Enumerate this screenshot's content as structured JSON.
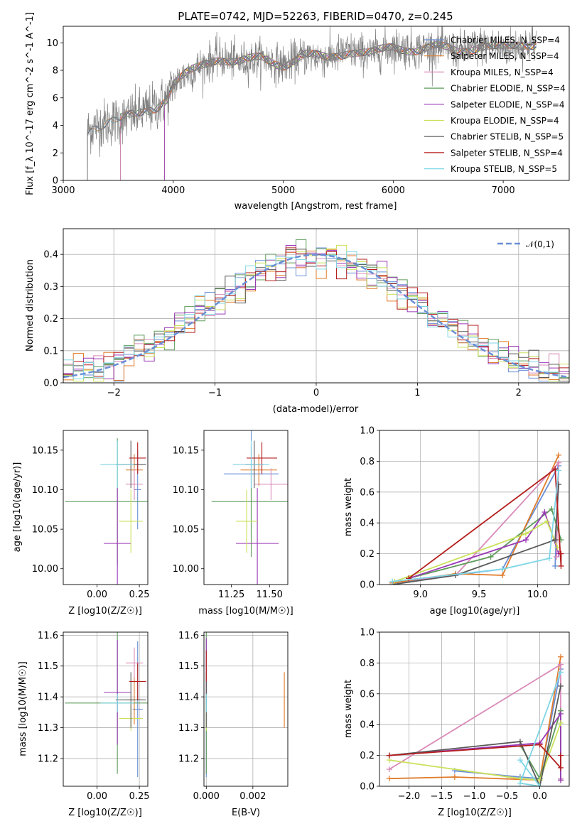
{
  "palette": [
    "#6a8fd6",
    "#e07b2a",
    "#d989b8",
    "#5e9b5a",
    "#9a3ab7",
    "#c9e05a",
    "#595959",
    "#b51d1d",
    "#7fd6e6"
  ],
  "chart_data": [
    {
      "id": "spectrum",
      "type": "line",
      "title": "PLATE=0742, MJD=52263, FIBERID=0470, z=0.245",
      "xlabel": "wavelength [Angstrom, rest frame]",
      "ylabel": "Flux [f_λ 10^-17 erg cm^-2 s^-1 A^-1]",
      "xlim": [
        3000,
        7600
      ],
      "ylim": [
        0,
        11.2
      ],
      "xticks": [
        "3000",
        "4000",
        "5000",
        "6000",
        "7000"
      ],
      "yticks": [
        "0",
        "2",
        "4",
        "6",
        "8",
        "10"
      ],
      "legend_position": "right",
      "legend": [
        "Chabrier MILES, N_SSP=4",
        "Salpeter MILES, N_SSP=4",
        "Kroupa MILES, N_SSP=4",
        "Chabrier ELODIE, N_SSP=4",
        "Salpeter ELODIE, N_SSP=4",
        "Kroupa ELODIE, N_SSP=4",
        "Chabrier STELIB, N_SSP=5",
        "Salpeter STELIB, N_SSP=4",
        "Kroupa STELIB, N_SSP=5"
      ],
      "continuum": {
        "x": [
          3220,
          3300,
          3400,
          3550,
          3700,
          3850,
          3950,
          4000,
          4100,
          4250,
          4400,
          4600,
          4800,
          5000,
          5200,
          5400,
          5600,
          5800,
          6000,
          6200,
          6400,
          6600,
          6800,
          7000,
          7300
        ],
        "y": [
          3.6,
          4.0,
          4.2,
          4.5,
          4.9,
          5.4,
          6.0,
          7.0,
          7.6,
          8.3,
          8.9,
          8.6,
          8.9,
          8.4,
          9.1,
          8.9,
          9.4,
          9.2,
          9.7,
          9.5,
          9.7,
          9.4,
          9.8,
          9.6,
          10.0
        ]
      },
      "model_start": [
        3220,
        3220,
        3520,
        3520,
        3920,
        3920,
        3220,
        3520,
        3220
      ]
    },
    {
      "id": "residuals",
      "type": "histogram",
      "xlabel": "(data-model)/error",
      "ylabel": "Normed distribution",
      "xlim": [
        -2.5,
        2.5
      ],
      "ylim": [
        0,
        0.48
      ],
      "xticks": [
        "−2",
        "−1",
        "0",
        "1",
        "2"
      ],
      "yticks": [
        "0.0",
        "0.1",
        "0.2",
        "0.3",
        "0.4"
      ],
      "grid": true,
      "legend": [
        "𝒩(0,1)"
      ],
      "legend_position": "top-right",
      "bin_width": 0.1
    },
    {
      "id": "age-vs-Z",
      "type": "errorbar",
      "xlabel": "Z [log10(Z/Z☉)]",
      "ylabel": "age [log10(age/yr)]",
      "xlim": [
        -0.2,
        0.3
      ],
      "ylim": [
        9.98,
        10.175
      ],
      "xticks": [
        "0.00",
        "0.25"
      ],
      "yticks": [
        "10.00",
        "10.05",
        "10.10",
        "10.15"
      ],
      "points": [
        {
          "x": 0.24,
          "xe": 0.02,
          "y": 10.1,
          "ye": 0.05
        },
        {
          "x": 0.22,
          "xe": 0.05,
          "y": 10.125,
          "ye": 0.02
        },
        {
          "x": 0.22,
          "xe": 0.05,
          "y": 10.107,
          "ye": 0.02
        },
        {
          "x": 0.12,
          "xe": 0.31,
          "y": 10.085,
          "ye": 0.08
        },
        {
          "x": 0.12,
          "xe": 0.08,
          "y": 10.032,
          "ye": 0.07
        },
        {
          "x": 0.2,
          "xe": 0.07,
          "y": 10.06,
          "ye": 0.04
        },
        {
          "x": 0.2,
          "xe": 0.09,
          "y": 10.132,
          "ye": 0.03
        },
        {
          "x": 0.24,
          "xe": 0.05,
          "y": 10.14,
          "ye": 0.02
        },
        {
          "x": 0.12,
          "xe": 0.1,
          "y": 10.132,
          "ye": 0.03
        }
      ]
    },
    {
      "id": "age-vs-mass",
      "type": "errorbar",
      "xlabel": "mass [log10(M/M☉)]",
      "ylabel": "",
      "xlim": [
        11.07,
        11.62
      ],
      "ylim": [
        9.98,
        10.175
      ],
      "xticks": [
        "11.25",
        "11.50"
      ],
      "yticks": [
        "10.00",
        "10.05",
        "10.10",
        "10.15"
      ],
      "points": [
        {
          "x": 11.38,
          "xe": 0.18,
          "y": 10.12,
          "ye": 0.08
        },
        {
          "x": 11.43,
          "xe": 0.12,
          "y": 10.125,
          "ye": 0.02
        },
        {
          "x": 11.51,
          "xe": 0.11,
          "y": 10.107,
          "ye": 0.02
        },
        {
          "x": 11.38,
          "xe": 0.26,
          "y": 10.085,
          "ye": 0.07
        },
        {
          "x": 11.42,
          "xe": 0.14,
          "y": 10.032,
          "ye": 0.07
        },
        {
          "x": 11.35,
          "xe": 0.07,
          "y": 10.06,
          "ye": 0.04
        },
        {
          "x": 11.4,
          "xe": 0.06,
          "y": 10.132,
          "ye": 0.03
        },
        {
          "x": 11.45,
          "xe": 0.1,
          "y": 10.14,
          "ye": 0.02
        },
        {
          "x": 11.38,
          "xe": 0.12,
          "y": 10.132,
          "ye": 0.03
        }
      ]
    },
    {
      "id": "mass-weight-vs-age",
      "type": "line",
      "xlabel": "age [log10(age/yr)]",
      "ylabel": "mass weight",
      "xlim": [
        8.65,
        10.27
      ],
      "ylim": [
        0,
        1.0
      ],
      "xticks": [
        "9.0",
        "9.5",
        "10.0"
      ],
      "yticks": [
        "0.0",
        "0.2",
        "0.4",
        "0.6",
        "0.8",
        "1.0"
      ],
      "grid": true,
      "series": [
        {
          "x": [
            8.76,
            9.7,
            10.18,
            10.15
          ],
          "y": [
            0.01,
            0.1,
            0.77,
            0.12
          ]
        },
        {
          "x": [
            8.76,
            9.3,
            9.7,
            10.18
          ],
          "y": [
            0.01,
            0.07,
            0.06,
            0.84
          ]
        },
        {
          "x": [
            8.9,
            9.3,
            10.18,
            10.16
          ],
          "y": [
            0.03,
            0.06,
            0.79,
            0.18
          ]
        },
        {
          "x": [
            8.9,
            9.6,
            10.12,
            10.2
          ],
          "y": [
            0.04,
            0.18,
            0.49,
            0.29
          ]
        },
        {
          "x": [
            8.9,
            9.9,
            10.06,
            10.18
          ],
          "y": [
            0.04,
            0.29,
            0.47,
            0.2
          ]
        },
        {
          "x": [
            8.78,
            9.9,
            10.08,
            10.17
          ],
          "y": [
            0.02,
            0.33,
            0.41,
            0.24
          ]
        },
        {
          "x": [
            8.76,
            9.3,
            10.15,
            10.18
          ],
          "y": [
            0.0,
            0.06,
            0.29,
            0.65
          ]
        },
        {
          "x": [
            8.9,
            10.15,
            10.2,
            10.2
          ],
          "y": [
            0.04,
            0.75,
            0.12,
            0.2
          ]
        },
        {
          "x": [
            8.76,
            9.7,
            10.1,
            10.18
          ],
          "y": [
            0.02,
            0.1,
            0.17,
            0.74
          ]
        }
      ]
    },
    {
      "id": "mass-vs-Z",
      "type": "errorbar",
      "xlabel": "Z [log10(Z/Z☉)]",
      "ylabel": "mass [log10(M/M☉)]",
      "xlim": [
        -0.2,
        0.3
      ],
      "ylim": [
        11.11,
        11.61
      ],
      "xticks": [
        "0.00",
        "0.25"
      ],
      "yticks": [
        "11.2",
        "11.3",
        "11.4",
        "11.5",
        "11.6"
      ],
      "points": [
        {
          "x": 0.24,
          "xe": 0.03,
          "y": 11.36,
          "ye": 0.22
        },
        {
          "x": 0.22,
          "xe": 0.05,
          "y": 11.39,
          "ye": 0.08
        },
        {
          "x": 0.22,
          "xe": 0.05,
          "y": 11.51,
          "ye": 0.05
        },
        {
          "x": 0.12,
          "xe": 0.31,
          "y": 11.38,
          "ye": 0.23
        },
        {
          "x": 0.12,
          "xe": 0.08,
          "y": 11.415,
          "ye": 0.17
        },
        {
          "x": 0.2,
          "xe": 0.07,
          "y": 11.33,
          "ye": 0.04
        },
        {
          "x": 0.2,
          "xe": 0.09,
          "y": 11.39,
          "ye": 0.09
        },
        {
          "x": 0.24,
          "xe": 0.05,
          "y": 11.45,
          "ye": 0.06
        },
        {
          "x": 0.12,
          "xe": 0.1,
          "y": 11.38,
          "ye": 0.03
        }
      ]
    },
    {
      "id": "mass-vs-EBV",
      "type": "errorbar",
      "xlabel": "E(B-V)",
      "ylabel": "",
      "xlim": [
        -0.0001,
        0.0035
      ],
      "ylim": [
        11.11,
        11.61
      ],
      "xticks": [
        "0.000",
        "0.002"
      ],
      "yticks": [
        "11.2",
        "11.3",
        "11.4",
        "11.5",
        "11.6"
      ],
      "points": [
        {
          "x": 0.0,
          "xe": 0,
          "y": 11.36,
          "ye": 0.22
        },
        {
          "x": 0.00335,
          "xe": 0,
          "y": 11.39,
          "ye": 0.09
        },
        {
          "x": 0.0,
          "xe": 0,
          "y": 11.51,
          "ye": 0.05
        },
        {
          "x": 0.0,
          "xe": 0,
          "y": 11.38,
          "ye": 0.23
        },
        {
          "x": 0.0,
          "xe": 0,
          "y": 11.5,
          "ye": 0.09
        },
        {
          "x": 0.0,
          "xe": 0,
          "y": 11.33,
          "ye": 0.04
        },
        {
          "x": 0.0,
          "xe": 0,
          "y": 11.39,
          "ye": 0.09
        },
        {
          "x": 0.0,
          "xe": 0,
          "y": 11.5,
          "ye": 0.05
        },
        {
          "x": 0.0,
          "xe": 0,
          "y": 11.38,
          "ye": 0.03
        }
      ]
    },
    {
      "id": "mass-weight-vs-Z",
      "type": "line",
      "xlabel": "Z [log10(Z/Z☉)]",
      "ylabel": "mass weight",
      "xlim": [
        -2.45,
        0.45
      ],
      "ylim": [
        0,
        1.0
      ],
      "xticks": [
        "−2.0",
        "−1.5",
        "−1.0",
        "−0.5",
        "0.0"
      ],
      "yticks": [
        "0.0",
        "0.2",
        "0.4",
        "0.6",
        "0.8",
        "1.0"
      ],
      "grid": true,
      "series": [
        {
          "x": [
            -1.3,
            -0.3,
            0.0,
            0.32
          ],
          "y": [
            0.1,
            0.06,
            0.05,
            0.76
          ]
        },
        {
          "x": [
            -2.3,
            -1.3,
            0.0,
            0.32
          ],
          "y": [
            0.05,
            0.06,
            0.04,
            0.84
          ]
        },
        {
          "x": [
            -2.3,
            0.32,
            0.32
          ],
          "y": [
            0.11,
            0.79,
            0.05
          ]
        },
        {
          "x": [
            -0.3,
            0.0,
            0.32,
            0.32
          ],
          "y": [
            0.27,
            0.05,
            0.49,
            0.04
          ]
        },
        {
          "x": [
            -2.3,
            0.0,
            0.32,
            0.32
          ],
          "y": [
            0.2,
            0.28,
            0.47,
            0.04
          ]
        },
        {
          "x": [
            -2.3,
            -0.3,
            0.0,
            0.32
          ],
          "y": [
            0.17,
            0.05,
            0.04,
            0.41
          ]
        },
        {
          "x": [
            -2.3,
            -0.3,
            0.0,
            0.32
          ],
          "y": [
            0.2,
            0.29,
            0.0,
            0.65
          ]
        },
        {
          "x": [
            -2.3,
            0.0,
            0.32,
            0.32
          ],
          "y": [
            0.2,
            0.27,
            0.12,
            0.2
          ]
        },
        {
          "x": [
            -0.3,
            0.0,
            -0.3,
            0.32
          ],
          "y": [
            0.17,
            0.0,
            0.02,
            0.74
          ]
        }
      ]
    }
  ]
}
